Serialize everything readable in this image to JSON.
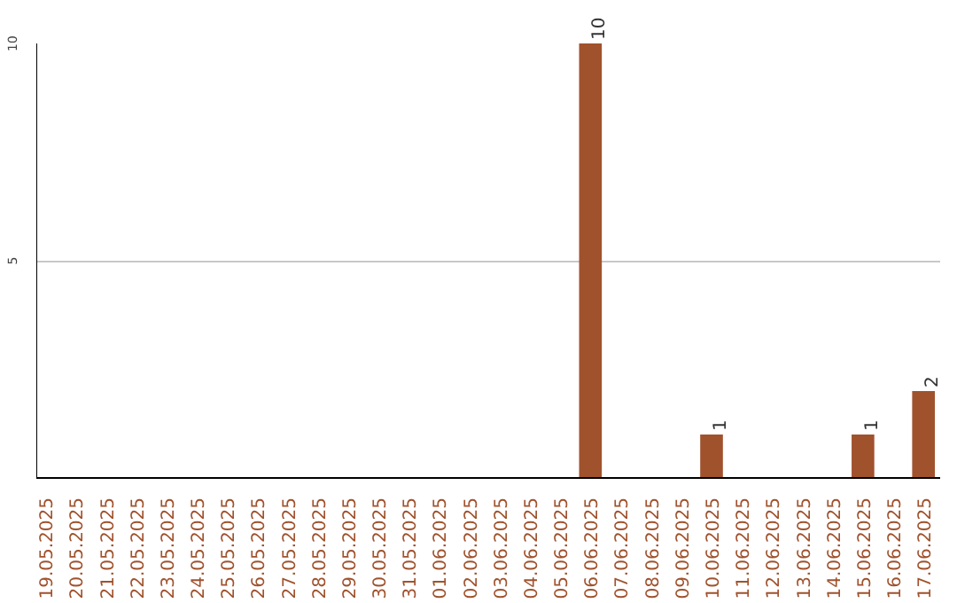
{
  "chart_data": {
    "type": "bar",
    "categories": [
      "19.05.2025",
      "20.05.2025",
      "21.05.2025",
      "22.05.2025",
      "23.05.2025",
      "24.05.2025",
      "25.05.2025",
      "26.05.2025",
      "27.05.2025",
      "28.05.2025",
      "29.05.2025",
      "30.05.2025",
      "31.05.2025",
      "01.06.2025",
      "02.06.2025",
      "03.06.2025",
      "04.06.2025",
      "05.06.2025",
      "06.06.2025",
      "07.06.2025",
      "08.06.2025",
      "09.06.2025",
      "10.06.2025",
      "11.06.2025",
      "12.06.2025",
      "13.06.2025",
      "14.06.2025",
      "15.06.2025",
      "16.06.2025",
      "17.06.2025"
    ],
    "values": [
      0,
      0,
      0,
      0,
      0,
      0,
      0,
      0,
      0,
      0,
      0,
      0,
      0,
      0,
      0,
      0,
      0,
      0,
      10,
      0,
      0,
      0,
      1,
      0,
      0,
      0,
      0,
      1,
      0,
      2
    ],
    "value_labels": [
      null,
      null,
      null,
      null,
      null,
      null,
      null,
      null,
      null,
      null,
      null,
      null,
      null,
      null,
      null,
      null,
      null,
      null,
      "10",
      null,
      null,
      null,
      "1",
      null,
      null,
      null,
      null,
      "1",
      null,
      "2"
    ],
    "color": "#a0522d",
    "ylim": [
      0,
      10
    ],
    "yticks": [
      5,
      10
    ],
    "grid": "y"
  }
}
